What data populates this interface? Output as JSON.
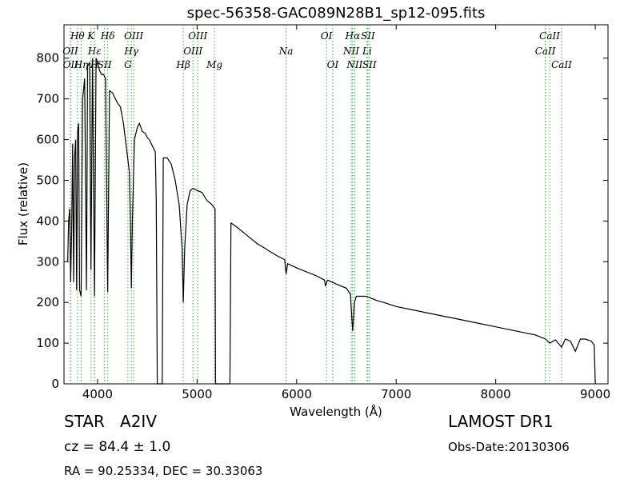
{
  "chart_data": {
    "type": "line",
    "title": "spec-56358-GAC089N28B1_sp12-095.fits",
    "x_label": "Wavelength (Å)",
    "y_label": "Flux (relative)",
    "xlim": [
      3663,
      9128
    ],
    "ylim": [
      0,
      882
    ],
    "xticks": [
      4000,
      5000,
      6000,
      7000,
      8000,
      9000
    ],
    "yticks": [
      0,
      100,
      200,
      300,
      400,
      500,
      600,
      700,
      800
    ],
    "series": [
      {
        "color": "#000000",
        "x": [
          3700,
          3710,
          3720,
          3730,
          3740,
          3750,
          3760,
          3770,
          3780,
          3790,
          3800,
          3810,
          3820,
          3835,
          3850,
          3870,
          3889,
          3900,
          3920,
          3934,
          3950,
          3969,
          3985,
          4000,
          4020,
          4040,
          4060,
          4080,
          4102,
          4120,
          4150,
          4180,
          4200,
          4230,
          4260,
          4280,
          4300,
          4320,
          4330,
          4340,
          4350,
          4370,
          4400,
          4420,
          4450,
          4480,
          4500,
          4520,
          4540,
          4560,
          4580,
          4590,
          4600,
          4650,
          4660,
          4700,
          4740,
          4780,
          4820,
          4850,
          4861,
          4875,
          4900,
          4930,
          4960,
          5000,
          5050,
          5100,
          5150,
          5180,
          5185,
          5330,
          5340,
          5400,
          5500,
          5600,
          5700,
          5800,
          5880,
          5894,
          5910,
          6000,
          6100,
          6200,
          6280,
          6290,
          6310,
          6400,
          6500,
          6540,
          6563,
          6580,
          6600,
          6700,
          6800,
          6900,
          7000,
          7200,
          7400,
          7600,
          7800,
          8000,
          8200,
          8400,
          8500,
          8542,
          8600,
          8662,
          8700,
          8750,
          8800,
          8850,
          8900,
          8960,
          8990,
          9000
        ],
        "values": [
          300,
          400,
          430,
          250,
          380,
          590,
          250,
          560,
          600,
          230,
          620,
          640,
          230,
          215,
          700,
          750,
          230,
          780,
          790,
          280,
          800,
          215,
          800,
          790,
          770,
          760,
          760,
          750,
          225,
          720,
          715,
          700,
          690,
          680,
          640,
          600,
          560,
          520,
          400,
          235,
          400,
          600,
          630,
          640,
          620,
          615,
          605,
          600,
          590,
          580,
          570,
          450,
          0,
          0,
          555,
          555,
          540,
          500,
          440,
          330,
          200,
          330,
          440,
          475,
          480,
          475,
          470,
          450,
          440,
          430,
          0,
          0,
          395,
          385,
          365,
          345,
          330,
          315,
          305,
          270,
          295,
          285,
          275,
          265,
          255,
          240,
          255,
          245,
          235,
          220,
          130,
          200,
          215,
          215,
          205,
          198,
          190,
          180,
          170,
          160,
          150,
          140,
          130,
          120,
          110,
          100,
          108,
          90,
          110,
          105,
          80,
          110,
          110,
          105,
          95,
          0
        ]
      }
    ],
    "line_color": "#33aa33",
    "line_labels": [
      [
        {
          "label": "Hθ",
          "x": 3798
        },
        {
          "label": "K",
          "x": 3934
        },
        {
          "label": "Hδ",
          "x": 4102
        },
        {
          "label": "OIII",
          "x": 4363
        },
        {
          "label": "OIII",
          "x": 5007
        },
        {
          "label": "OI",
          "x": 6300
        },
        {
          "label": "Hα",
          "x": 6563
        },
        {
          "label": "SII",
          "x": 6716
        },
        {
          "label": "CaII",
          "x": 8542
        }
      ],
      [
        {
          "label": "OII",
          "x": 3727
        },
        {
          "label": "Hε",
          "x": 3970
        },
        {
          "label": "Hγ",
          "x": 4340
        },
        {
          "label": "OIII",
          "x": 4959
        },
        {
          "label": "Na",
          "x": 5894
        },
        {
          "label": "NII",
          "x": 6548
        },
        {
          "label": "Li",
          "x": 6708
        },
        {
          "label": "CaII",
          "x": 8498
        }
      ],
      [
        {
          "label": "OII",
          "x": 3730
        },
        {
          "label": "Hη",
          "x": 3835
        },
        {
          "label": "H",
          "x": 3969
        },
        {
          "label": "SII",
          "x": 4070
        },
        {
          "label": "G",
          "x": 4305
        },
        {
          "label": "Hβ",
          "x": 4861
        },
        {
          "label": "Mg",
          "x": 5175
        },
        {
          "label": "OI",
          "x": 6363
        },
        {
          "label": "NII",
          "x": 6583
        },
        {
          "label": "SII",
          "x": 6731
        },
        {
          "label": "CaII",
          "x": 8662
        }
      ]
    ]
  },
  "info": {
    "object": "STAR   A2IV",
    "redshift": "cz = 84.4 ± 1.0",
    "coords": "RA = 90.25334, DEC = 30.33063",
    "survey": "LAMOST DR1",
    "date": "Obs-Date:20130306"
  }
}
